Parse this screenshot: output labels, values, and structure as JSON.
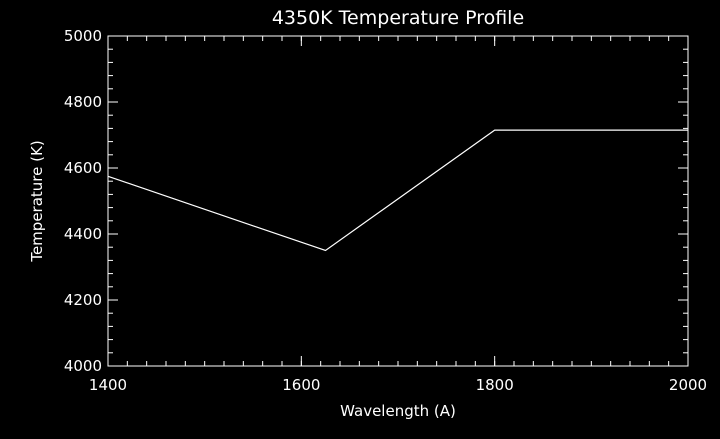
{
  "colors": {
    "background": "#000000",
    "foreground": "#ffffff"
  },
  "chart_data": {
    "type": "line",
    "title": "4350K Temperature Profile",
    "xlabel": "Wavelength (A)",
    "ylabel": "Temperature (K)",
    "xlim": [
      1400,
      2000
    ],
    "ylim": [
      4000,
      5000
    ],
    "xticks": [
      1400,
      1600,
      1800,
      2000
    ],
    "yticks": [
      4000,
      4200,
      4400,
      4600,
      4800,
      5000
    ],
    "x_minor_step": 20,
    "y_minor_step": 40,
    "grid": false,
    "series": [
      {
        "x": [
          1400,
          1625,
          1800,
          2000
        ],
        "y": [
          4575,
          4350,
          4715,
          4715
        ]
      }
    ]
  }
}
